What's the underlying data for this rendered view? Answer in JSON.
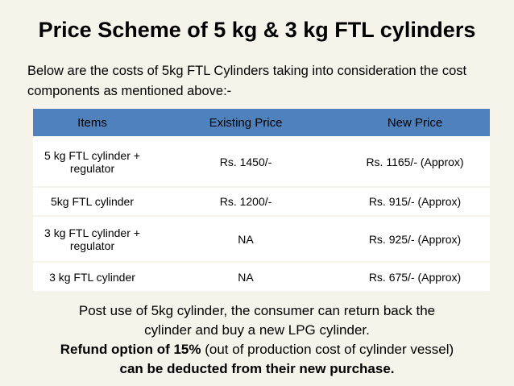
{
  "title": "Price Scheme of 5 kg & 3 kg FTL cylinders",
  "intro": "Below are the costs of 5kg FTL Cylinders taking into consideration the cost components as mentioned above:-",
  "table": {
    "headers": [
      "Items",
      "Existing  Price",
      "New Price"
    ],
    "rows": [
      [
        "5 kg FTL cylinder + regulator",
        "Rs. 1450/-",
        "Rs. 1165/- (Approx)"
      ],
      [
        "5kg  FTL cylinder",
        "Rs. 1200/-",
        "Rs.  915/- (Approx)"
      ],
      [
        "3 kg FTL cylinder + regulator",
        "NA",
        "Rs. 925/- (Approx)"
      ],
      [
        "3 kg FTL cylinder",
        "NA",
        "Rs. 675/- (Approx)"
      ]
    ]
  },
  "footer": {
    "line1": "Post use of 5kg cylinder, the consumer can return back the",
    "line2": "cylinder and buy a new LPG cylinder.",
    "line3_bold": "Refund option of 15%",
    "line3_rest": " (out of production cost of cylinder vessel)",
    "line4_bold": "can be deducted from their new purchase."
  }
}
